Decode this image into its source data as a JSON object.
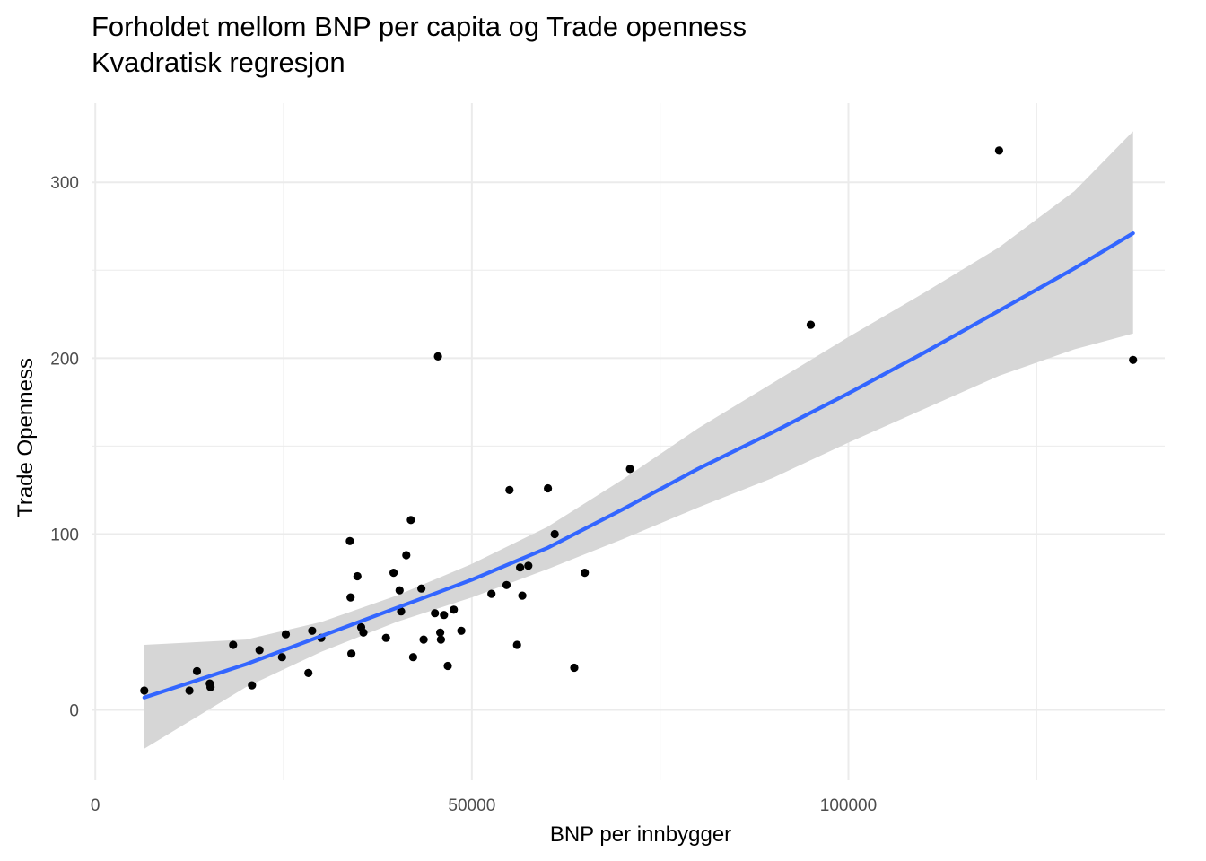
{
  "chart_data": {
    "type": "scatter",
    "title": "Forholdet mellom BNP per capita og Trade openness",
    "subtitle": "Kvadratisk regresjon",
    "xlabel": "BNP per innbygger",
    "ylabel": "Trade Openness",
    "xlim": [
      -500,
      142000
    ],
    "ylim": [
      -40,
      345
    ],
    "x_ticks": [
      0,
      50000,
      100000
    ],
    "x_tick_labels": [
      "0",
      "50000",
      "100000"
    ],
    "y_ticks": [
      0,
      100,
      200,
      300
    ],
    "y_tick_labels": [
      "0",
      "100",
      "200",
      "300"
    ],
    "grid": true,
    "points": [
      {
        "x": 6500,
        "y": 11
      },
      {
        "x": 12500,
        "y": 11
      },
      {
        "x": 13500,
        "y": 22
      },
      {
        "x": 15200,
        "y": 15
      },
      {
        "x": 15300,
        "y": 13
      },
      {
        "x": 18300,
        "y": 37
      },
      {
        "x": 20800,
        "y": 14
      },
      {
        "x": 21800,
        "y": 34
      },
      {
        "x": 24800,
        "y": 30
      },
      {
        "x": 25300,
        "y": 43
      },
      {
        "x": 28300,
        "y": 21
      },
      {
        "x": 28800,
        "y": 45
      },
      {
        "x": 30000,
        "y": 41
      },
      {
        "x": 33800,
        "y": 96
      },
      {
        "x": 33900,
        "y": 64
      },
      {
        "x": 34000,
        "y": 32
      },
      {
        "x": 34800,
        "y": 76
      },
      {
        "x": 35300,
        "y": 47
      },
      {
        "x": 35600,
        "y": 44
      },
      {
        "x": 38600,
        "y": 41
      },
      {
        "x": 39600,
        "y": 78
      },
      {
        "x": 40400,
        "y": 68
      },
      {
        "x": 40600,
        "y": 56
      },
      {
        "x": 41300,
        "y": 88
      },
      {
        "x": 41900,
        "y": 108
      },
      {
        "x": 42200,
        "y": 30
      },
      {
        "x": 43300,
        "y": 69
      },
      {
        "x": 43600,
        "y": 40
      },
      {
        "x": 45100,
        "y": 55
      },
      {
        "x": 45500,
        "y": 201
      },
      {
        "x": 45800,
        "y": 44
      },
      {
        "x": 45900,
        "y": 40
      },
      {
        "x": 46300,
        "y": 54
      },
      {
        "x": 46800,
        "y": 25
      },
      {
        "x": 47600,
        "y": 57
      },
      {
        "x": 48600,
        "y": 45
      },
      {
        "x": 52600,
        "y": 66
      },
      {
        "x": 54600,
        "y": 71
      },
      {
        "x": 55000,
        "y": 125
      },
      {
        "x": 56000,
        "y": 37
      },
      {
        "x": 56400,
        "y": 81
      },
      {
        "x": 56700,
        "y": 65
      },
      {
        "x": 57500,
        "y": 82
      },
      {
        "x": 60100,
        "y": 126
      },
      {
        "x": 61000,
        "y": 100
      },
      {
        "x": 63600,
        "y": 24
      },
      {
        "x": 65000,
        "y": 78
      },
      {
        "x": 71000,
        "y": 137
      },
      {
        "x": 95000,
        "y": 219
      },
      {
        "x": 120000,
        "y": 318
      },
      {
        "x": 137800,
        "y": 199
      }
    ],
    "fit_line": {
      "color": "#3366FF",
      "x": [
        6500,
        20000,
        30000,
        40000,
        50000,
        60000,
        70000,
        80000,
        90000,
        100000,
        110000,
        120000,
        130000,
        137800
      ],
      "y": [
        7,
        26,
        42,
        58,
        74,
        92,
        114,
        137,
        158,
        180,
        203,
        227,
        251,
        271
      ],
      "ci_lower": [
        -22,
        13,
        33,
        50,
        64,
        80,
        97,
        115,
        132,
        152,
        171,
        190,
        205,
        214
      ],
      "ci_upper": [
        37,
        40,
        50,
        65,
        83,
        104,
        131,
        160,
        186,
        212,
        237,
        263,
        295,
        329
      ]
    },
    "colors": {
      "points": "#000000",
      "line": "#3366FF",
      "ribbon": "#D6D6D6",
      "grid": "#EBEBEB",
      "tick_text": "#4D4D4D"
    }
  }
}
